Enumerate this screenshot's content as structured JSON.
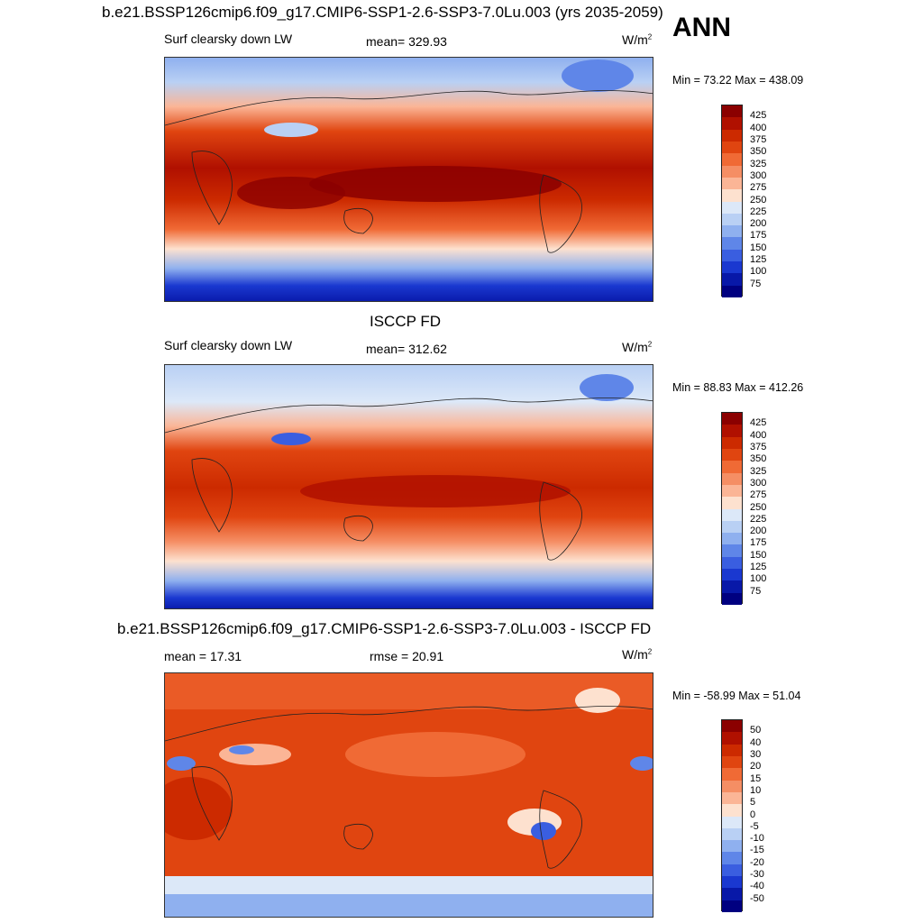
{
  "annual_tag": "ANN",
  "top_title": "b.e21.BSSP126cmip6.f09_g17.CMIP6-SSP1-2.6-SSP3-7.0Lu.003 (yrs 2035-2059)",
  "mid_title": "ISCCP FD",
  "bottom_title": "b.e21.BSSP126cmip6.f09_g17.CMIP6-SSP1-2.6-SSP3-7.0Lu.003 - ISCCP FD",
  "units_base": "W/m",
  "units_exp": "2",
  "panels": [
    {
      "left_label": "Surf clearsky down LW",
      "center_label": "mean= 329.93",
      "minmax": "Min =  73.22 Max = 438.09"
    },
    {
      "left_label": "Surf clearsky down LW",
      "center_label": "mean= 312.62",
      "minmax": "Min =  88.83 Max = 412.26"
    },
    {
      "left_label": "mean =  17.31",
      "center_label": "rmse =  20.91",
      "minmax": "Min = -58.99 Max =  51.04"
    }
  ],
  "colorbars": {
    "abs_labels": [
      "425",
      "400",
      "375",
      "350",
      "325",
      "300",
      "275",
      "250",
      "225",
      "200",
      "175",
      "150",
      "125",
      "100",
      "75"
    ],
    "abs_colors": [
      "#8b0000",
      "#b01000",
      "#cc2a00",
      "#e04510",
      "#f06a35",
      "#f58e64",
      "#fbb596",
      "#fde1cf",
      "#dce8f8",
      "#b9d0f4",
      "#8fb0ef",
      "#5f86e8",
      "#3a5ee0",
      "#1a38d0",
      "#0818a8",
      "#000080"
    ],
    "diff_labels": [
      "50",
      "40",
      "30",
      "20",
      "15",
      "10",
      "5",
      "0",
      "-5",
      "-10",
      "-15",
      "-20",
      "-30",
      "-40",
      "-50"
    ],
    "diff_colors": [
      "#8b0000",
      "#b01000",
      "#cc2a00",
      "#e04510",
      "#f06a35",
      "#f58e64",
      "#fbb596",
      "#fde1cf",
      "#dce8f8",
      "#b9d0f4",
      "#8fb0ef",
      "#5f86e8",
      "#3a5ee0",
      "#1a38d0",
      "#0818a8",
      "#000080"
    ]
  },
  "chart_data": [
    {
      "type": "heatmap",
      "title": "b.e21.BSSP126cmip6.f09_g17.CMIP6-SSP1-2.6-SSP3-7.0Lu.003 (yrs 2035-2059)",
      "variable": "Surf clearsky down LW",
      "units": "W/m2",
      "mean": 329.93,
      "min": 73.22,
      "max": 438.09,
      "levels": [
        75,
        100,
        125,
        150,
        175,
        200,
        225,
        250,
        275,
        300,
        325,
        350,
        375,
        400,
        425
      ]
    },
    {
      "type": "heatmap",
      "title": "ISCCP FD",
      "variable": "Surf clearsky down LW",
      "units": "W/m2",
      "mean": 312.62,
      "min": 88.83,
      "max": 412.26,
      "levels": [
        75,
        100,
        125,
        150,
        175,
        200,
        225,
        250,
        275,
        300,
        325,
        350,
        375,
        400,
        425
      ]
    },
    {
      "type": "heatmap",
      "title": "b.e21.BSSP126cmip6.f09_g17.CMIP6-SSP1-2.6-SSP3-7.0Lu.003 - ISCCP FD",
      "units": "W/m2",
      "mean": 17.31,
      "rmse": 20.91,
      "min": -58.99,
      "max": 51.04,
      "levels": [
        -50,
        -40,
        -30,
        -20,
        -15,
        -10,
        -5,
        0,
        5,
        10,
        15,
        20,
        30,
        40,
        50
      ]
    }
  ]
}
